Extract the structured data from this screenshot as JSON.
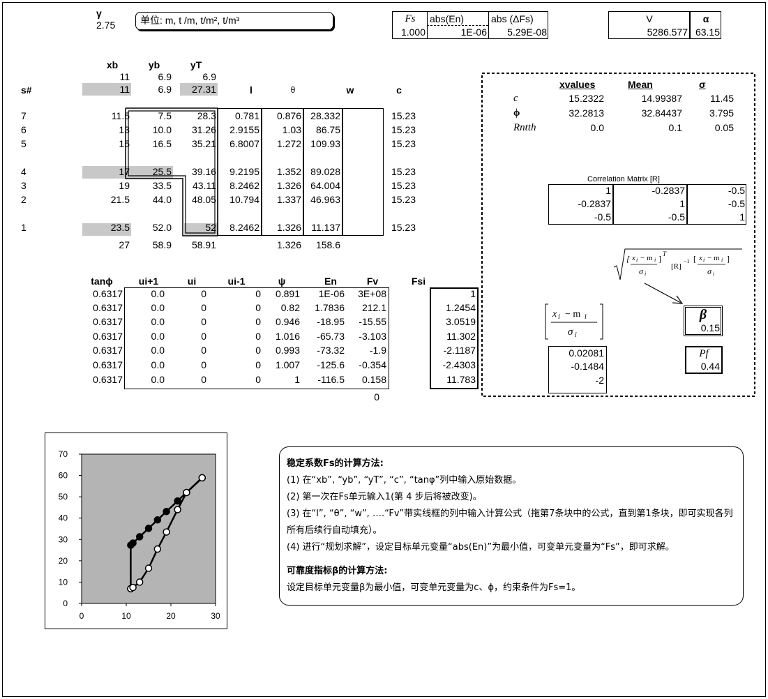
{
  "gamma": {
    "label": "γ",
    "value": "2.75"
  },
  "units_note": "单位: m, t /m, t/m², t/m³",
  "fs_box": {
    "fs_label": "Fs",
    "fs_value": "1.000",
    "abs_en_label": "abs(En)",
    "abs_en_value": "1E-06",
    "abs_dfs_label": "abs (ΔFs)",
    "abs_dfs_value": "5.29E-08"
  },
  "v_box": {
    "v_label": "V",
    "v_value": "5286.577",
    "alpha_label": "α",
    "alpha_value": "63.15"
  },
  "top_table": {
    "headers": {
      "xb": "xb",
      "yb": "yb",
      "yt": "yT",
      "sn": "s#",
      "l": "l",
      "theta": "θ",
      "w": "w",
      "c": "c"
    },
    "first_row": {
      "xb": "11",
      "yb": "6.9",
      "yt": "6.9"
    },
    "second_row": {
      "xb": "11",
      "yb": "6.9",
      "yt": "27.31"
    },
    "rows": [
      {
        "s": "7",
        "xb": "11.5",
        "yb": "7.5",
        "yt": "28.3",
        "l": "0.781",
        "theta": "0.876",
        "w": "28.332",
        "c": "15.23"
      },
      {
        "s": "6",
        "xb": "13",
        "yb": "10.0",
        "yt": "31.26",
        "l": "2.9155",
        "theta": "1.03",
        "w": "86.75",
        "c": "15.23"
      },
      {
        "s": "5",
        "xb": "15",
        "yb": "16.5",
        "yt": "35.21",
        "l": "6.8007",
        "theta": "1.272",
        "w": "109.93",
        "c": "15.23"
      },
      {
        "s": "4",
        "xb": "17",
        "yb": "25.5",
        "yt": "39.16",
        "l": "9.2195",
        "theta": "1.352",
        "w": "89.028",
        "c": "15.23"
      },
      {
        "s": "3",
        "xb": "19",
        "yb": "33.5",
        "yt": "43.11",
        "l": "8.2462",
        "theta": "1.326",
        "w": "64.004",
        "c": "15.23"
      },
      {
        "s": "2",
        "xb": "21.5",
        "yb": "44.0",
        "yt": "48.05",
        "l": "10.794",
        "theta": "1.337",
        "w": "46.963",
        "c": "15.23"
      },
      {
        "s": "1",
        "xb": "23.5",
        "yb": "52.0",
        "yt": "52",
        "l": "8.2462",
        "theta": "1.326",
        "w": "11.137",
        "c": "15.23"
      }
    ],
    "last_row": {
      "xb": "27",
      "yb": "58.9",
      "yt": "58.91",
      "theta": "1.326",
      "w": "158.6"
    }
  },
  "bottom_table": {
    "headers": {
      "tanphi": "tanϕ",
      "ui1": "ui+1",
      "ui": "ui",
      "uim1": "ui-1",
      "psi": "ψ",
      "en": "En",
      "fv": "Fv",
      "fsi": "Fsi"
    },
    "rows": [
      {
        "tanphi": "0.6317",
        "ui1": "0.0",
        "ui": "0",
        "uim1": "0",
        "psi": "0.891",
        "en": "1E-06",
        "fv": "3E+08",
        "fsi": "1"
      },
      {
        "tanphi": "0.6317",
        "ui1": "0.0",
        "ui": "0",
        "uim1": "0",
        "psi": "0.82",
        "en": "1.7836",
        "fv": "212.1",
        "fsi": "1.2454"
      },
      {
        "tanphi": "0.6317",
        "ui1": "0.0",
        "ui": "0",
        "uim1": "0",
        "psi": "0.946",
        "en": "-18.95",
        "fv": "-15.55",
        "fsi": "3.0519"
      },
      {
        "tanphi": "0.6317",
        "ui1": "0.0",
        "ui": "0",
        "uim1": "0",
        "psi": "1.016",
        "en": "-65.73",
        "fv": "-3.103",
        "fsi": "11.302"
      },
      {
        "tanphi": "0.6317",
        "ui1": "0.0",
        "ui": "0",
        "uim1": "0",
        "psi": "0.993",
        "en": "-73.32",
        "fv": "-1.9",
        "fsi": "-2.1187"
      },
      {
        "tanphi": "0.6317",
        "ui1": "0.0",
        "ui": "0",
        "uim1": "0",
        "psi": "1.007",
        "en": "-125.6",
        "fv": "-0.354",
        "fsi": "-2.4303"
      },
      {
        "tanphi": "0.6317",
        "ui1": "0.0",
        "ui": "0",
        "uim1": "0",
        "psi": "1",
        "en": "-116.5",
        "fv": "0.158",
        "fsi": "11.783"
      }
    ],
    "en_sum": "0"
  },
  "stats": {
    "headers": {
      "xvalues": "xvalues",
      "mean": "Mean",
      "sigma": "σ"
    },
    "rows": [
      {
        "label": "c",
        "x": "15.2322",
        "mean": "14.99387",
        "sigma": "11.45"
      },
      {
        "label": "ϕ",
        "x": "32.2813",
        "mean": "32.84437",
        "sigma": "3.795"
      },
      {
        "label": "Rntth",
        "x": "0.0",
        "mean": "0.1",
        "sigma": "0.05"
      }
    ],
    "corr_title": "Correlation Matrix [R]",
    "corr": [
      [
        "1",
        "-0.2837",
        "-0.5"
      ],
      [
        "-0.2837",
        "1",
        "-0.5"
      ],
      [
        "-0.5",
        "-0.5",
        "1"
      ]
    ],
    "beta_label": "β",
    "beta_value": "0.15",
    "z_values": [
      "0.02081",
      "-0.1484",
      "-2"
    ],
    "pf_label": "Pf",
    "pf_value": "0.44"
  },
  "notes": {
    "title1": "稳定系数Fs的计算方法:",
    "step1": "(1) 在“xb”, “yb”, “yT”, “c”, “tanφ”列中输入原始数据。",
    "step2": "(2) 第一次在Fs单元输入1(第 4 步后将被改变)。",
    "step3": "(3) 在“l”, “θ”, “w”, ….“Fv”带实线框的列中输入计算公式（拖第7条块中的公式，直到第1条块，即可实现各列所有后续行自动填充）。",
    "step4": "(4) 进行“规划求解”，设定目标单元变量“abs(En)”为最小值，可变单元变量为“Fs”，即可求解。",
    "title2": "可靠度指标β的计算方法:",
    "line2": "设定目标单元变量β为最小值，可变单元变量为c、ϕ，约束条件为Fs=1。"
  },
  "chart_data": {
    "type": "line",
    "xlim": [
      0,
      30
    ],
    "ylim": [
      0,
      70
    ],
    "xticks": [
      "0",
      "10",
      "20",
      "30"
    ],
    "yticks": [
      "0",
      "10",
      "20",
      "30",
      "40",
      "50",
      "60",
      "70"
    ],
    "grid": false,
    "background": "#b4b4b4",
    "series": [
      {
        "marker": "filled",
        "x": [
          11,
          11,
          11.5,
          13,
          15,
          17,
          19,
          21.5,
          23.5,
          27
        ],
        "y": [
          6.9,
          27.31,
          28.3,
          31.26,
          35.21,
          39.16,
          43.11,
          48.05,
          52,
          58.91
        ]
      },
      {
        "marker": "open",
        "x": [
          11,
          11.5,
          13,
          15,
          17,
          19,
          21.5,
          23.5,
          27
        ],
        "y": [
          6.9,
          7.5,
          10.0,
          16.5,
          25.5,
          33.5,
          44.0,
          52.0,
          58.9
        ]
      }
    ]
  }
}
